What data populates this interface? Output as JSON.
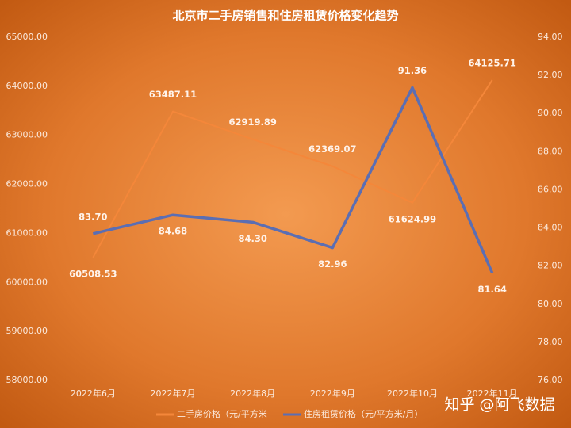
{
  "chart_data": {
    "type": "line",
    "title": "北京市二手房销售和住房租赁价格变化趋势",
    "categories": [
      "2022年6月",
      "2022年7月",
      "2022年8月",
      "2022年9月",
      "2022年10月",
      "2022年11月"
    ],
    "series": [
      {
        "name": "二手房价格（元/平方米",
        "color": "#f4873a",
        "axis": "y",
        "values": [
          60508.53,
          63487.11,
          62919.89,
          62369.07,
          61624.99,
          64125.71
        ]
      },
      {
        "name": "住房租赁价格（元/平方米/月）",
        "color": "#5b6eb3",
        "axis": "y2",
        "values": [
          83.7,
          84.68,
          84.3,
          82.96,
          91.36,
          81.64
        ],
        "value_labels": [
          "83.70",
          "84.68",
          "84.30",
          "82.96",
          "91.36",
          "81.64"
        ]
      }
    ],
    "ylim": [
      58000,
      65000
    ],
    "yticks": [
      {
        "value": 58000,
        "label": "58000.00"
      },
      {
        "value": 59000,
        "label": "59000.00"
      },
      {
        "value": 60000,
        "label": "60000.00"
      },
      {
        "value": 61000,
        "label": "61000.00"
      },
      {
        "value": 62000,
        "label": "62000.00"
      },
      {
        "value": 63000,
        "label": "63000.00"
      },
      {
        "value": 64000,
        "label": "64000.00"
      },
      {
        "value": 65000,
        "label": "65000.00"
      }
    ],
    "y2lim": [
      76,
      94
    ],
    "y2ticks": [
      {
        "value": 76,
        "label": "76.00"
      },
      {
        "value": 78,
        "label": "78.00"
      },
      {
        "value": 80,
        "label": "80.00"
      },
      {
        "value": 82,
        "label": "82.00"
      },
      {
        "value": 84,
        "label": "84.00"
      },
      {
        "value": 86,
        "label": "86.00"
      },
      {
        "value": 88,
        "label": "88.00"
      },
      {
        "value": 90,
        "label": "90.00"
      },
      {
        "value": 92,
        "label": "92.00"
      },
      {
        "value": 94,
        "label": "94.00"
      }
    ],
    "grid": false,
    "legend": "bottom",
    "watermark": "知乎 @阿飞数据"
  }
}
